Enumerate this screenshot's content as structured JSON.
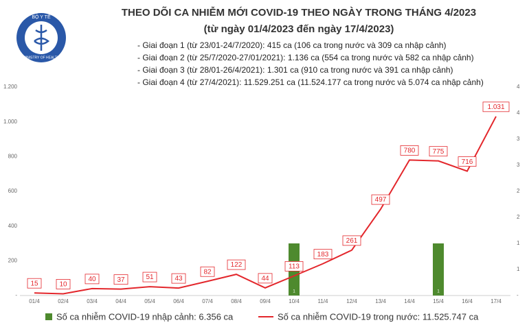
{
  "logo": {
    "top": "BỘ Y TẾ",
    "bottom": "MINISTRY OF HEALTH"
  },
  "chart_data": {
    "type": "combo",
    "title": "THEO DÕI CA NHIỄM MỚI COVID-19 THEO NGÀY TRONG THÁNG 4/2023",
    "subtitle": "(từ ngày 01/4/2023 đến ngày 17/4/2023)",
    "annotations": [
      "- Giai đoạn 1 (từ 23/01-24/7/2020): 415 ca (106 ca trong nước và 309 ca nhập cảnh)",
      "- Giai đoạn 2 (từ 25/7/2020-27/01/2021): 1.136 ca (554 ca trong nước và 582 ca nhập cảnh)",
      "- Giai đoạn 3 (từ 28/01-26/4/2021): 1.301 ca (910 ca trong nước và 391 ca nhập cảnh)",
      "- Giai đoạn 4 (từ 27/4/2021): 11.529.251 ca (11.524.177 ca trong nước và 5.074 ca nhập cảnh)"
    ],
    "categories": [
      "01/4",
      "02/4",
      "03/4",
      "04/4",
      "05/4",
      "06/4",
      "07/4",
      "08/4",
      "09/4",
      "10/4",
      "11/4",
      "12/4",
      "13/4",
      "14/4",
      "15/4",
      "16/4",
      "17/4"
    ],
    "ylim": [
      0,
      1200
    ],
    "yticks": [
      {
        "value": 0,
        "label": "-"
      },
      200,
      400,
      600,
      800,
      {
        "value": 1000,
        "label": "1.000"
      },
      {
        "value": 1200,
        "label": "1.200"
      }
    ],
    "y2lim": [
      0,
      4
    ],
    "y2ticks": [
      {
        "value": 0,
        "label": "-"
      },
      {
        "value": 0.5,
        "label": "1"
      },
      1,
      {
        "value": 1.5,
        "label": "2"
      },
      2,
      {
        "value": 2.5,
        "label": "3"
      },
      3,
      {
        "value": 3.5,
        "label": "4"
      },
      4
    ],
    "series": [
      {
        "name": "Số ca nhiễm COVID-19 nhập cảnh: 6.356 ca",
        "type": "bar",
        "axis": "y2",
        "color": "#4e8a2e",
        "values": [
          0,
          0,
          0,
          0,
          0,
          0,
          0,
          0,
          0,
          1,
          0,
          0,
          0,
          0,
          1,
          0,
          0
        ],
        "value_labels": [
          "-",
          "-",
          "-",
          "-",
          "-",
          "-",
          "-",
          "-",
          "-",
          "1",
          "-",
          "-",
          "-",
          "-",
          "1",
          "-",
          "-"
        ]
      },
      {
        "name": "Số ca nhiễm COVID-19 trong nước: 11.525.747 ca",
        "type": "line",
        "color": "#e3262b",
        "values": [
          15,
          10,
          40,
          37,
          51,
          43,
          82,
          122,
          44,
          113,
          183,
          261,
          497,
          780,
          775,
          716,
          1031
        ],
        "value_labels": [
          "15",
          "10",
          "40",
          "37",
          "51",
          "43",
          "82",
          "122",
          "44",
          "113",
          "183",
          "261",
          "497",
          "780",
          "775",
          "716",
          "1.031"
        ]
      }
    ]
  }
}
